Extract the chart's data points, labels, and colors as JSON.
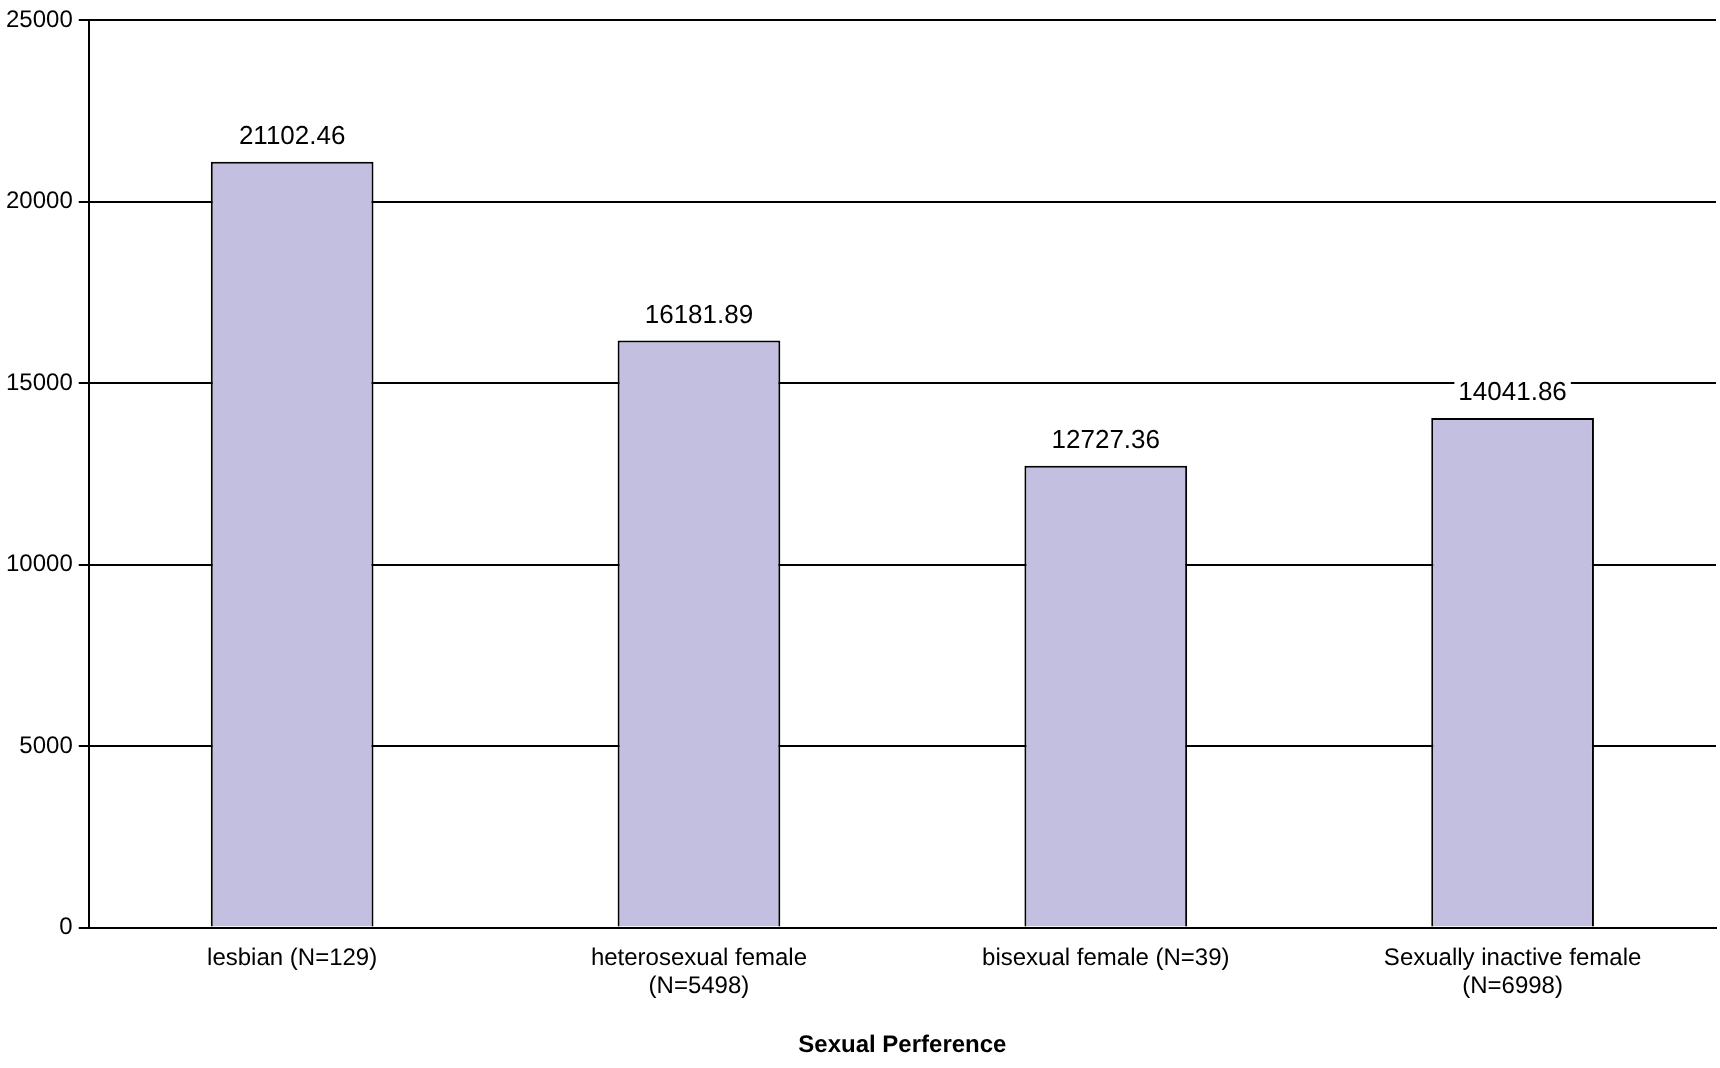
{
  "chart_data": {
    "type": "bar",
    "xlabel": "Sexual Perference",
    "categories": [
      "lesbian (N=129)",
      "heterosexual female (N=5498)",
      "bisexual female (N=39)",
      "Sexually inactive female (N=6998)"
    ],
    "values": [
      21102.46,
      16181.89,
      12727.36,
      14041.86
    ],
    "color": "#c3bfe0",
    "ylim": [
      0,
      25000
    ],
    "yticks": [
      0,
      5000,
      10000,
      15000,
      20000,
      25000
    ],
    "grid": "y",
    "data_labels": true
  }
}
